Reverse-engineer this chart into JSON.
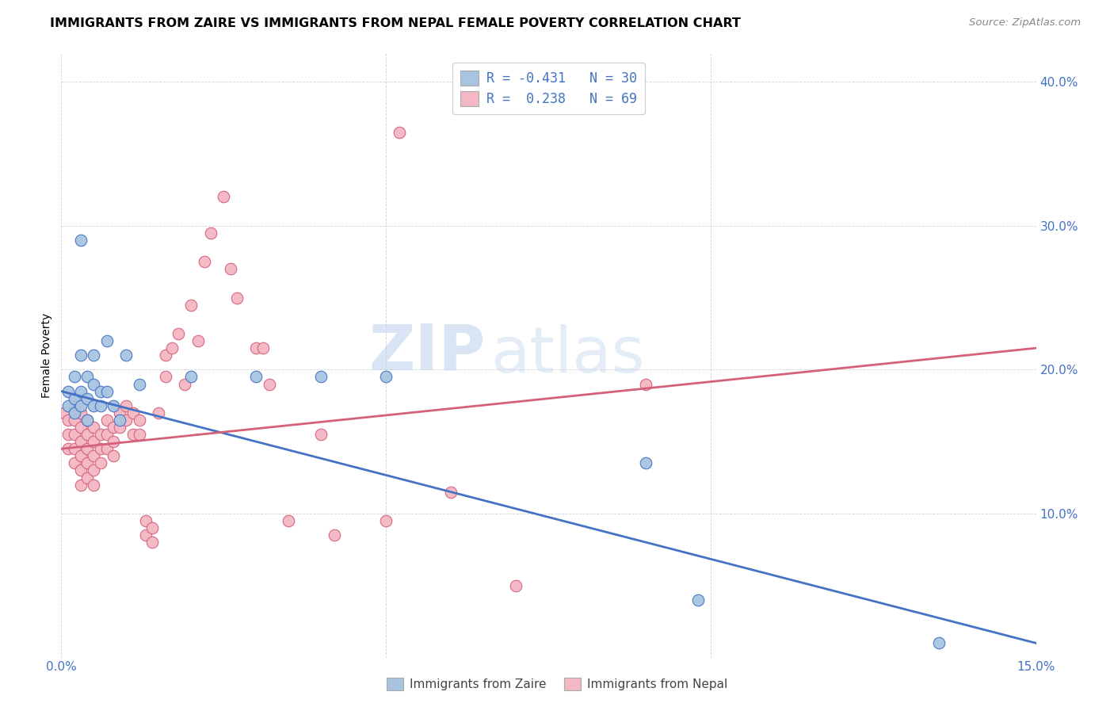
{
  "title": "IMMIGRANTS FROM ZAIRE VS IMMIGRANTS FROM NEPAL FEMALE POVERTY CORRELATION CHART",
  "source": "Source: ZipAtlas.com",
  "ylabel": "Female Poverty",
  "x_min": 0.0,
  "x_max": 0.15,
  "y_min": 0.0,
  "y_max": 0.42,
  "color_zaire": "#a8c4e0",
  "color_nepal": "#f4b8c4",
  "line_color_zaire": "#4472c4",
  "line_color_nepal": "#d4607a",
  "watermark_zip": "ZIP",
  "watermark_atlas": "atlas",
  "zaire_line": [
    0.0,
    0.185,
    0.15,
    0.01
  ],
  "nepal_line": [
    0.0,
    0.145,
    0.15,
    0.215
  ],
  "zaire_points": [
    [
      0.001,
      0.185
    ],
    [
      0.001,
      0.175
    ],
    [
      0.002,
      0.195
    ],
    [
      0.002,
      0.18
    ],
    [
      0.002,
      0.17
    ],
    [
      0.003,
      0.21
    ],
    [
      0.003,
      0.185
    ],
    [
      0.003,
      0.175
    ],
    [
      0.004,
      0.195
    ],
    [
      0.004,
      0.18
    ],
    [
      0.004,
      0.165
    ],
    [
      0.005,
      0.21
    ],
    [
      0.005,
      0.19
    ],
    [
      0.005,
      0.175
    ],
    [
      0.006,
      0.185
    ],
    [
      0.006,
      0.175
    ],
    [
      0.007,
      0.22
    ],
    [
      0.007,
      0.185
    ],
    [
      0.008,
      0.175
    ],
    [
      0.009,
      0.165
    ],
    [
      0.01,
      0.21
    ],
    [
      0.012,
      0.19
    ],
    [
      0.003,
      0.29
    ],
    [
      0.02,
      0.195
    ],
    [
      0.03,
      0.195
    ],
    [
      0.04,
      0.195
    ],
    [
      0.05,
      0.195
    ],
    [
      0.09,
      0.135
    ],
    [
      0.098,
      0.04
    ],
    [
      0.135,
      0.01
    ]
  ],
  "nepal_points": [
    [
      0.0005,
      0.17
    ],
    [
      0.001,
      0.165
    ],
    [
      0.001,
      0.155
    ],
    [
      0.001,
      0.145
    ],
    [
      0.002,
      0.175
    ],
    [
      0.002,
      0.165
    ],
    [
      0.002,
      0.155
    ],
    [
      0.002,
      0.145
    ],
    [
      0.002,
      0.135
    ],
    [
      0.003,
      0.17
    ],
    [
      0.003,
      0.16
    ],
    [
      0.003,
      0.15
    ],
    [
      0.003,
      0.14
    ],
    [
      0.003,
      0.13
    ],
    [
      0.003,
      0.12
    ],
    [
      0.004,
      0.165
    ],
    [
      0.004,
      0.155
    ],
    [
      0.004,
      0.145
    ],
    [
      0.004,
      0.135
    ],
    [
      0.004,
      0.125
    ],
    [
      0.005,
      0.16
    ],
    [
      0.005,
      0.15
    ],
    [
      0.005,
      0.14
    ],
    [
      0.005,
      0.13
    ],
    [
      0.005,
      0.12
    ],
    [
      0.006,
      0.155
    ],
    [
      0.006,
      0.145
    ],
    [
      0.006,
      0.135
    ],
    [
      0.007,
      0.165
    ],
    [
      0.007,
      0.155
    ],
    [
      0.007,
      0.145
    ],
    [
      0.008,
      0.16
    ],
    [
      0.008,
      0.15
    ],
    [
      0.008,
      0.14
    ],
    [
      0.009,
      0.17
    ],
    [
      0.009,
      0.16
    ],
    [
      0.01,
      0.175
    ],
    [
      0.01,
      0.165
    ],
    [
      0.011,
      0.17
    ],
    [
      0.011,
      0.155
    ],
    [
      0.012,
      0.165
    ],
    [
      0.012,
      0.155
    ],
    [
      0.013,
      0.095
    ],
    [
      0.013,
      0.085
    ],
    [
      0.014,
      0.09
    ],
    [
      0.014,
      0.08
    ],
    [
      0.015,
      0.17
    ],
    [
      0.016,
      0.21
    ],
    [
      0.016,
      0.195
    ],
    [
      0.017,
      0.215
    ],
    [
      0.018,
      0.225
    ],
    [
      0.019,
      0.19
    ],
    [
      0.02,
      0.245
    ],
    [
      0.021,
      0.22
    ],
    [
      0.022,
      0.275
    ],
    [
      0.023,
      0.295
    ],
    [
      0.025,
      0.32
    ],
    [
      0.026,
      0.27
    ],
    [
      0.027,
      0.25
    ],
    [
      0.03,
      0.215
    ],
    [
      0.031,
      0.215
    ],
    [
      0.032,
      0.19
    ],
    [
      0.035,
      0.095
    ],
    [
      0.04,
      0.155
    ],
    [
      0.042,
      0.085
    ],
    [
      0.05,
      0.095
    ],
    [
      0.052,
      0.365
    ],
    [
      0.06,
      0.115
    ],
    [
      0.07,
      0.05
    ],
    [
      0.09,
      0.19
    ]
  ]
}
